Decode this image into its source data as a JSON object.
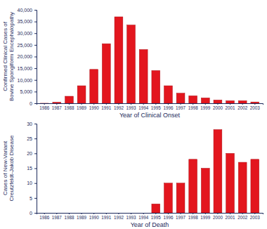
{
  "chart_data": [
    {
      "type": "bar",
      "categories": [
        "1986",
        "1987",
        "1988",
        "1989",
        "1990",
        "1991",
        "1992",
        "1993",
        "1994",
        "1995",
        "1996",
        "1997",
        "1998",
        "1999",
        "2000",
        "2001",
        "2002",
        "2003"
      ],
      "values": [
        10,
        450,
        3000,
        7500,
        14500,
        25500,
        37000,
        33500,
        23000,
        14000,
        7500,
        4300,
        3200,
        2300,
        1400,
        1100,
        1100,
        550
      ],
      "color": "#e3161e",
      "ylabel": [
        "Confirmed Clinical Cases of",
        "Bovine Spongiform Encephalopathy"
      ],
      "xlabel": "Year of Clinical Onset",
      "ylim": [
        0,
        40000
      ],
      "yticks": [
        0,
        {
          "value": 5000,
          "label": "5,000"
        },
        {
          "value": 10000,
          "label": "10,000"
        },
        {
          "value": 15000,
          "label": "15,000"
        },
        {
          "value": 20000,
          "label": "20,000"
        },
        {
          "value": 25000,
          "label": "25,000"
        },
        {
          "value": 30000,
          "label": "30,000"
        },
        {
          "value": 35000,
          "label": "35,000"
        },
        {
          "value": 40000,
          "label": "40,000"
        }
      ],
      "grid": false
    },
    {
      "type": "bar",
      "categories": [
        "1986",
        "1987",
        "1988",
        "1989",
        "1990",
        "1991",
        "1992",
        "1993",
        "1994",
        "1995",
        "1996",
        "1997",
        "1998",
        "1999",
        "2000",
        "2001",
        "2002",
        "2003"
      ],
      "values": [
        0,
        0,
        0,
        0,
        0,
        0,
        0,
        0,
        0,
        3,
        10,
        10,
        18,
        15,
        28,
        20,
        17,
        18
      ],
      "color": "#e3161e",
      "ylabel": [
        "Cases of New-Variant",
        "Creutzfeldt-Jakob Disease"
      ],
      "xlabel": "Year of Death",
      "ylim": [
        0,
        30
      ],
      "yticks": [
        0,
        5,
        10,
        15,
        20,
        25,
        30
      ],
      "grid": false
    }
  ]
}
